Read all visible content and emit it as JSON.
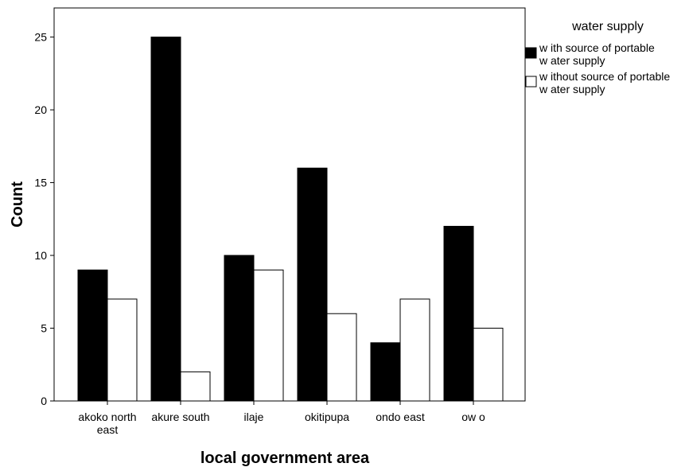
{
  "chart_data": {
    "type": "bar",
    "xlabel": "local government area",
    "ylabel": "Count",
    "ylim": [
      0,
      27
    ],
    "yticks": [
      0,
      5,
      10,
      15,
      20,
      25
    ],
    "categories": [
      [
        "akoko north",
        "east"
      ],
      [
        "akure south"
      ],
      [
        "ilaje"
      ],
      [
        "okitipupa"
      ],
      [
        "ondo east"
      ],
      [
        "ow o"
      ]
    ],
    "legend": {
      "title": "water supply",
      "position": "right"
    },
    "series": [
      {
        "name": [
          "w ith source of portable",
          "w ater supply"
        ],
        "color": "#000000",
        "values": [
          9,
          25,
          10,
          16,
          4,
          12
        ]
      },
      {
        "name": [
          "w ithout source of portable",
          "w ater supply"
        ],
        "color": "#ffffff",
        "values": [
          7,
          2,
          9,
          6,
          7,
          5
        ]
      }
    ],
    "grid": false
  }
}
